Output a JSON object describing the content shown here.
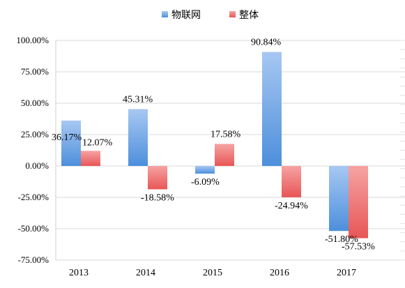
{
  "chart_data": {
    "type": "bar",
    "categories": [
      "2013",
      "2014",
      "2015",
      "2016",
      "2017"
    ],
    "series": [
      {
        "name": "物联网",
        "values": [
          36.17,
          45.31,
          -6.09,
          90.84,
          -51.8
        ],
        "labels": [
          "36.17%",
          "45.31%",
          "-6.09%",
          "90.84%",
          "-51.80%"
        ]
      },
      {
        "name": "整体",
        "values": [
          12.07,
          -18.58,
          17.58,
          -24.94,
          -57.53
        ],
        "labels": [
          "12.07%",
          "-18.58%",
          "17.58%",
          "-24.94%",
          "-57.53%"
        ]
      }
    ],
    "ylim": [
      -75,
      100
    ],
    "yticks": [
      "100.00%",
      "75.00%",
      "50.00%",
      "25.00%",
      "0.00%",
      "-25.00%",
      "-50.00%",
      "-75.00%"
    ],
    "ytick_values": [
      100,
      75,
      50,
      25,
      0,
      -25,
      -50,
      -75
    ],
    "legend_position": "top-center",
    "grid": true,
    "colors": {
      "iot_top": "#a7c8f2",
      "iot_bottom": "#4d8fdc",
      "total_top": "#f6a3a3",
      "total_bottom": "#e85656"
    }
  }
}
